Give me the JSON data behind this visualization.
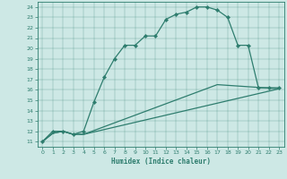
{
  "xlabel": "Humidex (Indice chaleur)",
  "background_color": "#cde8e5",
  "line_color": "#2e7d6e",
  "xlim": [
    -0.5,
    23.5
  ],
  "ylim": [
    10.5,
    24.5
  ],
  "xticks": [
    0,
    1,
    2,
    3,
    4,
    5,
    6,
    7,
    8,
    9,
    10,
    11,
    12,
    13,
    14,
    15,
    16,
    17,
    18,
    19,
    20,
    21,
    22,
    23
  ],
  "yticks": [
    11,
    12,
    13,
    14,
    15,
    16,
    17,
    18,
    19,
    20,
    21,
    22,
    23,
    24
  ],
  "line1": {
    "x": [
      0,
      1,
      2,
      3,
      4,
      5,
      6,
      7,
      8,
      9,
      10,
      11,
      12,
      13,
      14,
      15,
      16,
      17,
      18,
      19,
      20,
      21,
      22,
      23
    ],
    "y": [
      11,
      12,
      12,
      11.7,
      12,
      14.8,
      17.2,
      19.0,
      20.3,
      20.3,
      21.2,
      21.2,
      22.8,
      23.3,
      23.5,
      24.0,
      24.0,
      23.7,
      23.0,
      20.3,
      20.3,
      16.2,
      16.2,
      16.2
    ]
  },
  "line2": {
    "x": [
      0,
      1,
      2,
      3,
      4,
      23
    ],
    "y": [
      11,
      11.8,
      12,
      11.7,
      11.7,
      16.1
    ]
  },
  "line3": {
    "x": [
      0,
      1,
      2,
      3,
      4,
      17,
      23
    ],
    "y": [
      11,
      11.8,
      12,
      11.7,
      11.7,
      16.5,
      16.1
    ]
  }
}
